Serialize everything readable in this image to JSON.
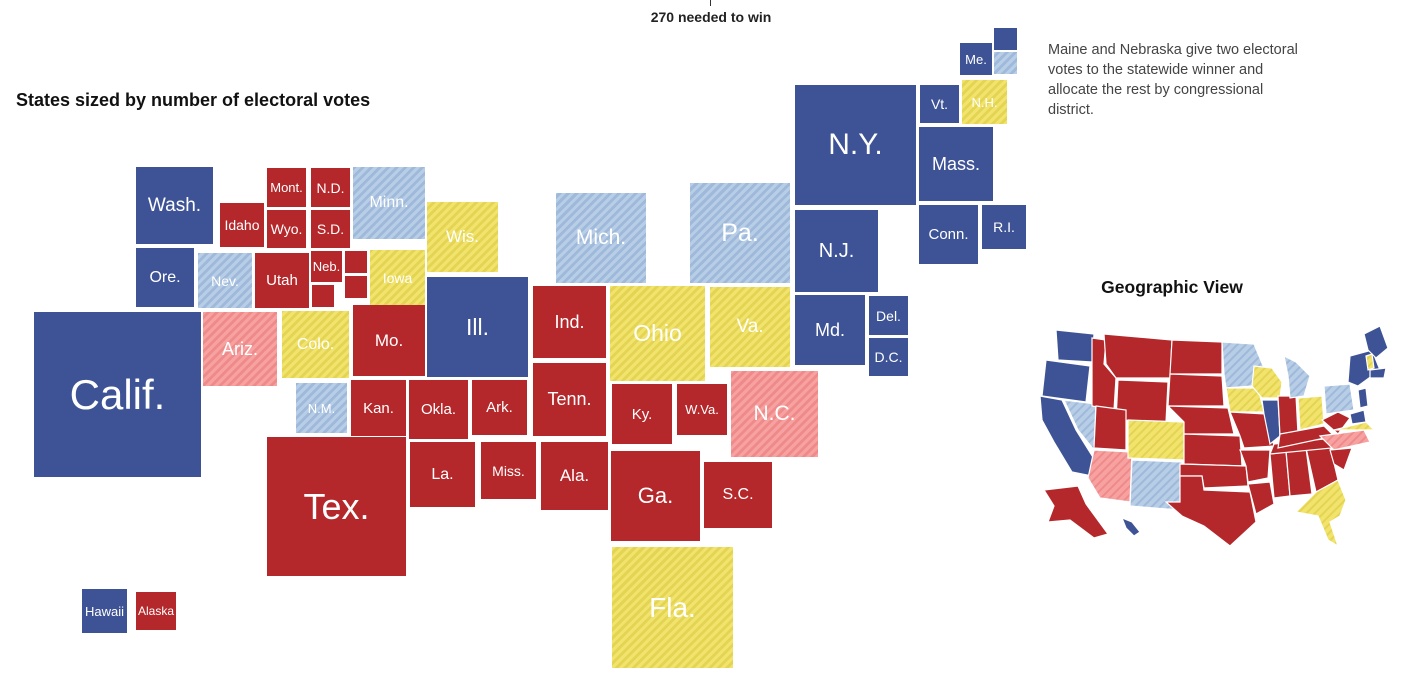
{
  "header": {
    "win_label": "270 needed to win"
  },
  "title": "States sized by number of electoral votes",
  "note": "Maine and Nebraska give two electoral votes to the statewide winner and allocate the rest by congressional district.",
  "geo_title": "Geographic View",
  "colors": {
    "dem": "#3e5396",
    "rep": "#b4282b",
    "tossup": "#f1e36c",
    "lean_dem": "#b8cde6",
    "lean_rep": "#f7a2a1"
  },
  "states": {
    "wa": "Wash.",
    "or": "Ore.",
    "ca": "Calif.",
    "id": "Idaho",
    "mt": "Mont.",
    "wy": "Wyo.",
    "nv": "Nev.",
    "ut": "Utah",
    "az": "Ariz.",
    "co": "Colo.",
    "nm": "N.M.",
    "nd": "N.D.",
    "sd": "S.D.",
    "ne": "Neb.",
    "ks": "Kan.",
    "ok": "Okla.",
    "tx": "Tex.",
    "mn": "Minn.",
    "ia": "Iowa",
    "mo": "Mo.",
    "ar": "Ark.",
    "la": "La.",
    "wi": "Wis.",
    "il": "Ill.",
    "ms": "Miss.",
    "mi": "Mich.",
    "in": "Ind.",
    "tn": "Tenn.",
    "al": "Ala.",
    "oh": "Ohio",
    "ky": "Ky.",
    "ga": "Ga.",
    "fl": "Fla.",
    "pa": "Pa.",
    "va": "Va.",
    "wv": "W.Va.",
    "nc": "N.C.",
    "sc": "S.C.",
    "ny": "N.Y.",
    "nj": "N.J.",
    "md": "Md.",
    "de": "Del.",
    "dc": "D.C.",
    "me": "Me.",
    "vt": "Vt.",
    "nh": "N.H.",
    "ma": "Mass.",
    "ct": "Conn.",
    "ri": "R.I.",
    "hi": "Hawaii",
    "ak": "Alaska"
  }
}
